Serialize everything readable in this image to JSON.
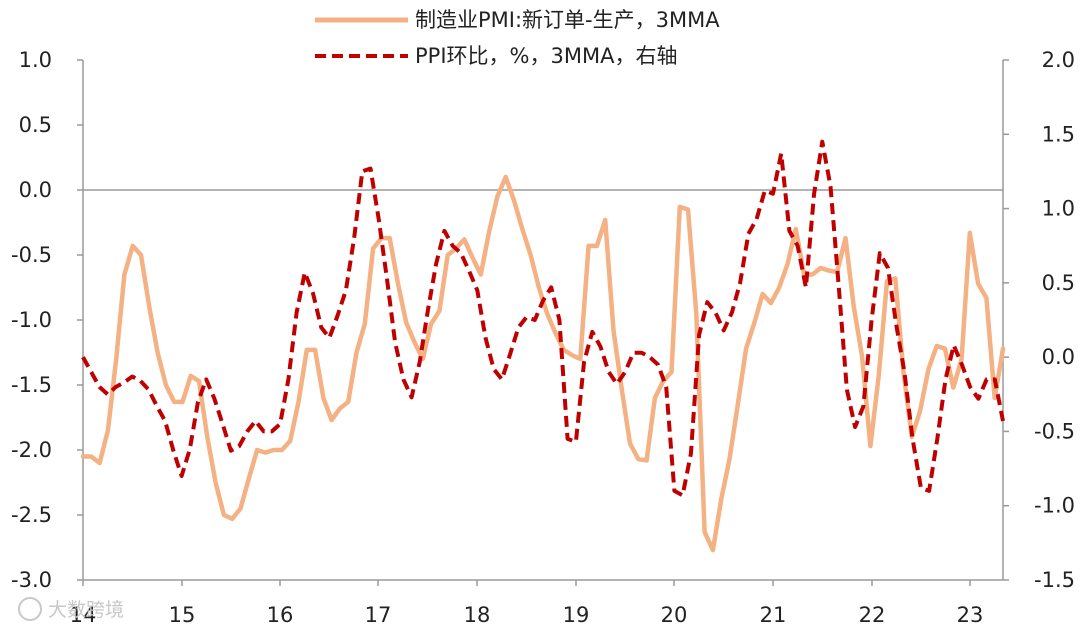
{
  "chart_data": {
    "type": "line",
    "x_tick_labels": [
      "14",
      "15",
      "16",
      "17",
      "18",
      "19",
      "20",
      "21",
      "22",
      "23"
    ],
    "y_left": {
      "min": -3.0,
      "max": 1.0,
      "ticks": [
        "1.0",
        "0.5",
        "0.0",
        "-0.5",
        "-1.0",
        "-1.5",
        "-2.0",
        "-2.5",
        "-3.0"
      ]
    },
    "y_right": {
      "min": -1.5,
      "max": 2.0,
      "ticks": [
        "2.0",
        "1.5",
        "1.0",
        "0.5",
        "0.0",
        "-0.5",
        "-1.0",
        "-1.5"
      ]
    },
    "grid": false,
    "legend_position": "top-center",
    "series": [
      {
        "name": "制造业PMI:新订单-生产，3MMA",
        "axis": "left",
        "style": "solid",
        "color": "#f4b183",
        "values": [
          -2.05,
          -2.05,
          -2.1,
          -1.85,
          -1.3,
          -0.65,
          -0.43,
          -0.5,
          -0.9,
          -1.25,
          -1.5,
          -1.63,
          -1.63,
          -1.43,
          -1.47,
          -1.9,
          -2.25,
          -2.5,
          -2.53,
          -2.45,
          -2.22,
          -2.0,
          -2.02,
          -2.0,
          -2.0,
          -1.93,
          -1.63,
          -1.23,
          -1.23,
          -1.6,
          -1.77,
          -1.68,
          -1.63,
          -1.25,
          -1.03,
          -0.45,
          -0.37,
          -0.37,
          -0.72,
          -1.02,
          -1.17,
          -1.3,
          -1.03,
          -0.93,
          -0.5,
          -0.45,
          -0.38,
          -0.52,
          -0.65,
          -0.32,
          -0.05,
          0.1,
          -0.08,
          -0.3,
          -0.5,
          -0.75,
          -0.95,
          -1.1,
          -1.23,
          -1.27,
          -1.3,
          -0.43,
          -0.43,
          -0.23,
          -1.08,
          -1.53,
          -1.95,
          -2.07,
          -2.08,
          -1.6,
          -1.47,
          -1.4,
          -0.13,
          -0.15,
          -0.95,
          -2.63,
          -2.77,
          -2.38,
          -2.07,
          -1.65,
          -1.22,
          -1.02,
          -0.8,
          -0.87,
          -0.75,
          -0.57,
          -0.3,
          -0.65,
          -0.65,
          -0.6,
          -0.62,
          -0.63,
          -0.37,
          -0.9,
          -1.28,
          -1.97,
          -1.43,
          -0.7,
          -0.68,
          -1.4,
          -1.9,
          -1.7,
          -1.38,
          -1.2,
          -1.22,
          -1.52,
          -1.3,
          -0.33,
          -0.72,
          -0.83,
          -1.6,
          -1.22
        ]
      },
      {
        "name": "PPI环比，%，3MMA，右轴",
        "axis": "right",
        "style": "dashed",
        "color": "#c00000",
        "values": [
          0.0,
          -0.1,
          -0.2,
          -0.25,
          -0.2,
          -0.17,
          -0.13,
          -0.16,
          -0.22,
          -0.33,
          -0.43,
          -0.63,
          -0.8,
          -0.62,
          -0.3,
          -0.15,
          -0.28,
          -0.45,
          -0.63,
          -0.6,
          -0.5,
          -0.43,
          -0.5,
          -0.5,
          -0.45,
          -0.15,
          0.3,
          0.57,
          0.43,
          0.2,
          0.13,
          0.28,
          0.45,
          0.8,
          1.25,
          1.27,
          0.93,
          0.53,
          0.1,
          -0.15,
          -0.27,
          -0.03,
          0.32,
          0.63,
          0.85,
          0.75,
          0.7,
          0.58,
          0.45,
          0.13,
          -0.08,
          -0.15,
          0.02,
          0.2,
          0.27,
          0.25,
          0.38,
          0.47,
          0.25,
          -0.55,
          -0.57,
          -0.03,
          0.17,
          0.07,
          -0.1,
          -0.18,
          -0.1,
          0.03,
          0.03,
          0.0,
          -0.05,
          -0.2,
          -0.9,
          -0.93,
          -0.65,
          0.15,
          0.37,
          0.3,
          0.18,
          0.3,
          0.5,
          0.83,
          0.93,
          1.12,
          1.1,
          1.37,
          0.85,
          0.75,
          0.47,
          1.1,
          1.45,
          1.15,
          0.48,
          -0.22,
          -0.47,
          -0.33,
          0.25,
          0.7,
          0.6,
          0.22,
          -0.1,
          -0.55,
          -0.88,
          -0.9,
          -0.55,
          -0.15,
          0.08,
          -0.05,
          -0.2,
          -0.28,
          -0.15,
          -0.15,
          -0.43
        ]
      }
    ]
  },
  "watermark": "大数跨境"
}
